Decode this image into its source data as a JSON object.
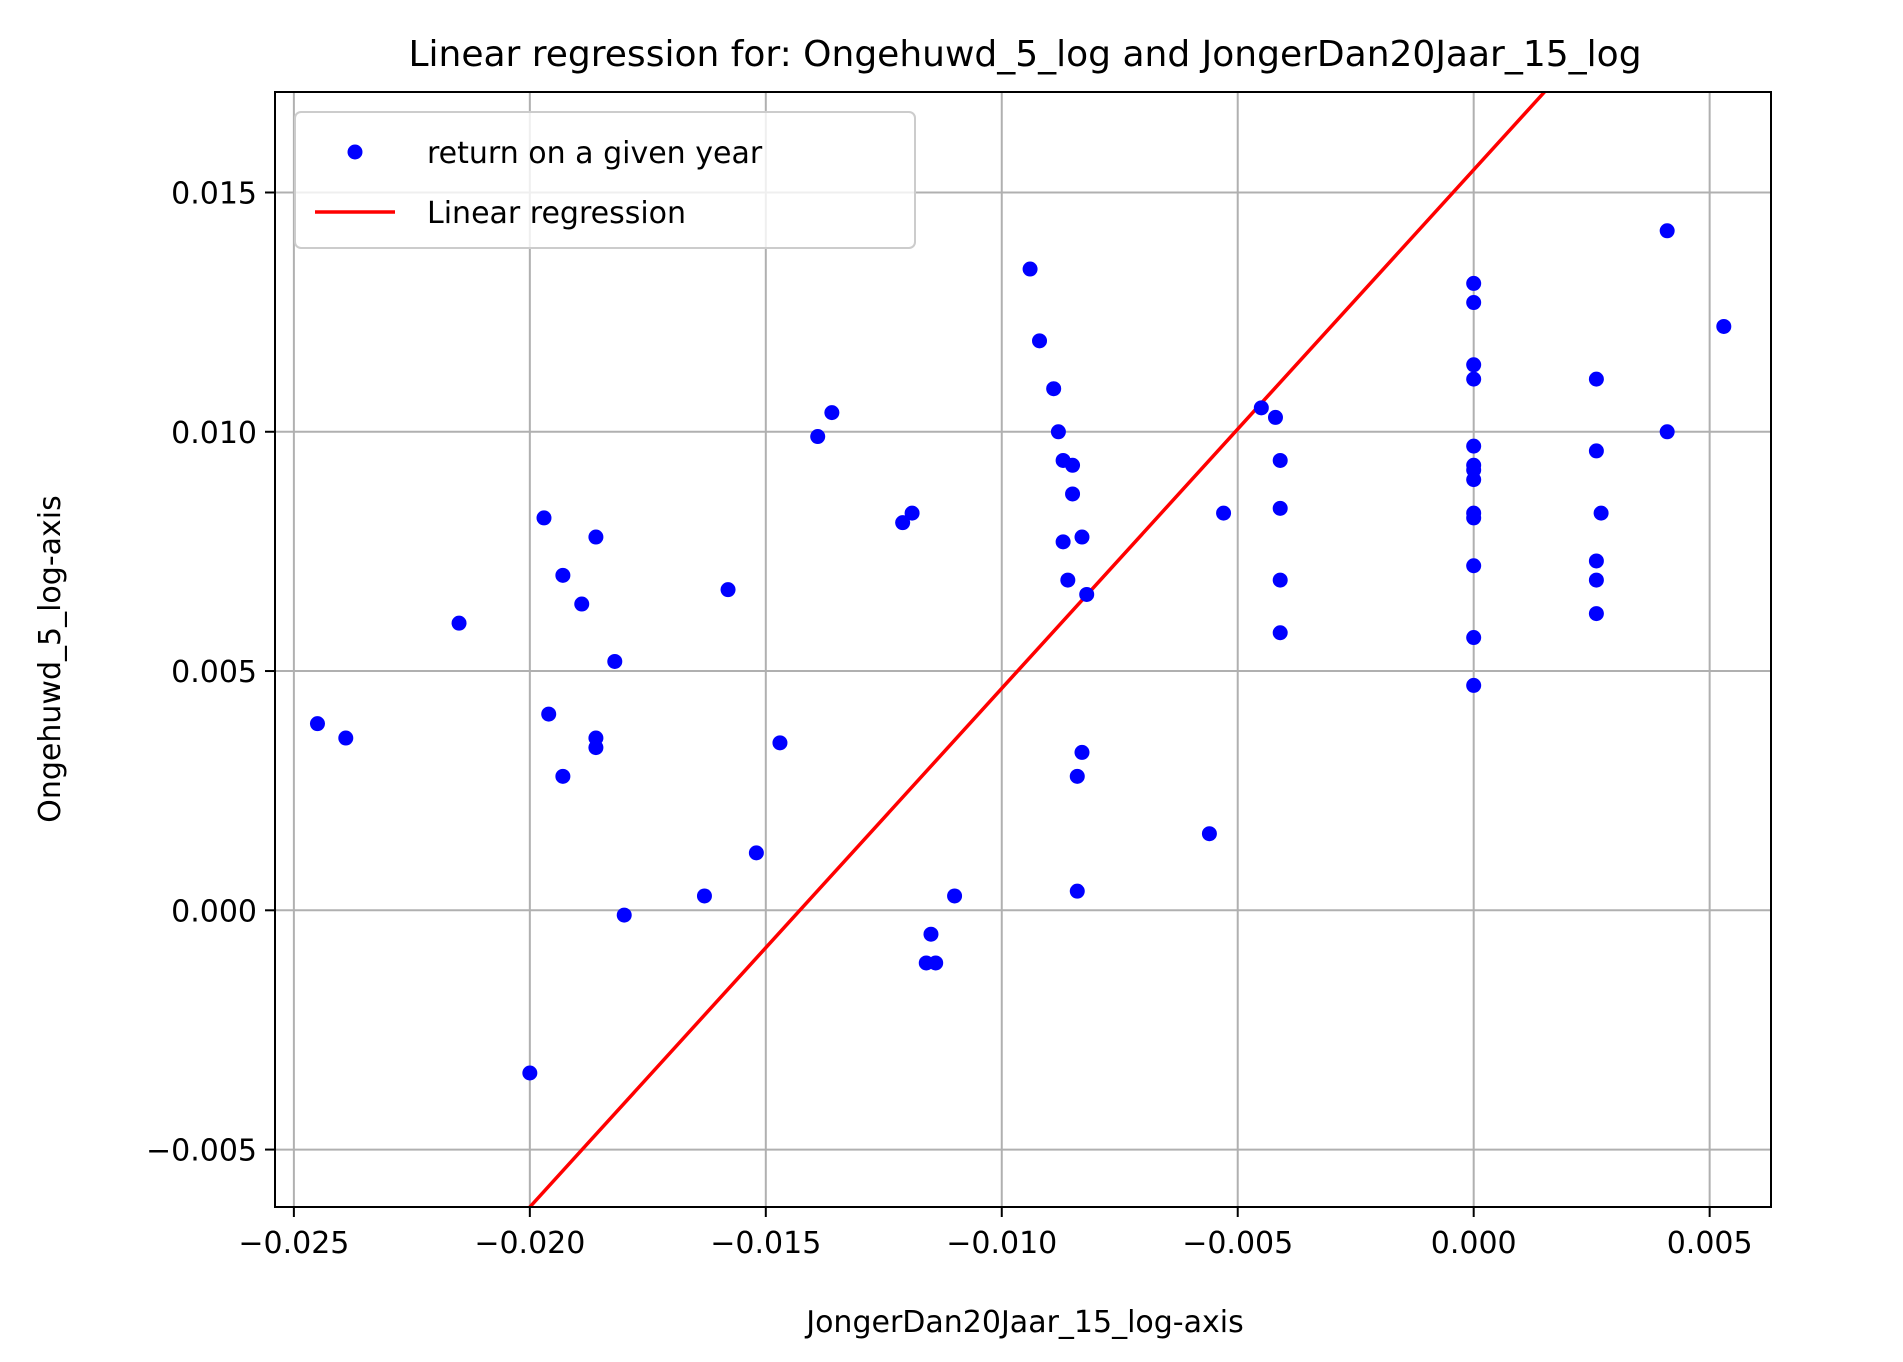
{
  "chart_data": {
    "type": "scatter",
    "title": "Linear regression for: Ongehuwd_5_log and JongerDan20Jaar_15_log",
    "xlabel": "JongerDan20Jaar_15_log-axis",
    "ylabel": "Ongehuwd_5_log-axis",
    "xlim": [
      -0.0254,
      0.0063
    ],
    "ylim": [
      -0.0062,
      0.0171
    ],
    "xticks": [
      -0.025,
      -0.02,
      -0.015,
      -0.01,
      -0.005,
      0.0,
      0.005
    ],
    "xtick_labels": [
      "−0.025",
      "−0.020",
      "−0.015",
      "−0.010",
      "−0.005",
      "0.000",
      "0.005"
    ],
    "yticks": [
      -0.005,
      0.0,
      0.005,
      0.01,
      0.015
    ],
    "ytick_labels": [
      "−0.005",
      "0.000",
      "0.005",
      "0.010",
      "0.015"
    ],
    "grid": true,
    "legend_position": "top-left",
    "series": [
      {
        "name": "return on a given year",
        "kind": "scatter",
        "color": "#0000ff",
        "points": [
          [
            -0.0245,
            0.0039
          ],
          [
            -0.0239,
            0.0036
          ],
          [
            -0.0215,
            0.006
          ],
          [
            -0.02,
            -0.0034
          ],
          [
            -0.0197,
            0.0082
          ],
          [
            -0.0196,
            0.0041
          ],
          [
            -0.0193,
            0.007
          ],
          [
            -0.0193,
            0.0028
          ],
          [
            -0.0189,
            0.0064
          ],
          [
            -0.0186,
            0.0078
          ],
          [
            -0.0186,
            0.0036
          ],
          [
            -0.0186,
            0.0034
          ],
          [
            -0.0182,
            0.0052
          ],
          [
            -0.018,
            -0.0001
          ],
          [
            -0.0163,
            0.0003
          ],
          [
            -0.0158,
            0.0067
          ],
          [
            -0.0152,
            0.0012
          ],
          [
            -0.0147,
            0.0035
          ],
          [
            -0.0139,
            0.0099
          ],
          [
            -0.0136,
            0.0104
          ],
          [
            -0.0121,
            0.0081
          ],
          [
            -0.0119,
            0.0083
          ],
          [
            -0.0116,
            -0.0011
          ],
          [
            -0.0115,
            -0.0005
          ],
          [
            -0.0114,
            -0.0011
          ],
          [
            -0.011,
            0.0003
          ],
          [
            -0.0094,
            0.0134
          ],
          [
            -0.0092,
            0.0119
          ],
          [
            -0.0089,
            0.0109
          ],
          [
            -0.0088,
            0.01
          ],
          [
            -0.0087,
            0.0094
          ],
          [
            -0.0087,
            0.0077
          ],
          [
            -0.0086,
            0.0069
          ],
          [
            -0.0085,
            0.0087
          ],
          [
            -0.0085,
            0.0093
          ],
          [
            -0.0084,
            0.0004
          ],
          [
            -0.0084,
            0.0028
          ],
          [
            -0.0083,
            0.0033
          ],
          [
            -0.0083,
            0.0078
          ],
          [
            -0.0082,
            0.0066
          ],
          [
            -0.0056,
            0.0016
          ],
          [
            -0.0053,
            0.0083
          ],
          [
            -0.0045,
            0.0105
          ],
          [
            -0.0042,
            0.0103
          ],
          [
            -0.0041,
            0.0084
          ],
          [
            -0.0041,
            0.0069
          ],
          [
            -0.0041,
            0.0058
          ],
          [
            -0.0041,
            0.0094
          ],
          [
            0.0,
            0.0131
          ],
          [
            0.0,
            0.0127
          ],
          [
            0.0,
            0.0114
          ],
          [
            0.0,
            0.0111
          ],
          [
            0.0,
            0.0097
          ],
          [
            0.0,
            0.0093
          ],
          [
            0.0,
            0.0092
          ],
          [
            0.0,
            0.009
          ],
          [
            0.0,
            0.0083
          ],
          [
            0.0,
            0.0082
          ],
          [
            0.0,
            0.0072
          ],
          [
            0.0,
            0.0057
          ],
          [
            0.0,
            0.0047
          ],
          [
            0.0026,
            0.0111
          ],
          [
            0.0026,
            0.0096
          ],
          [
            0.0027,
            0.0083
          ],
          [
            0.0026,
            0.0073
          ],
          [
            0.0026,
            0.0069
          ],
          [
            0.0026,
            0.0062
          ],
          [
            0.0041,
            0.0142
          ],
          [
            0.0041,
            0.01
          ],
          [
            0.0053,
            0.0122
          ]
        ]
      },
      {
        "name": "Linear regression",
        "kind": "line",
        "color": "#ff0000",
        "x": [
          -0.02,
          0.0015
        ],
        "y": [
          -0.0062,
          0.0171
        ]
      }
    ]
  }
}
